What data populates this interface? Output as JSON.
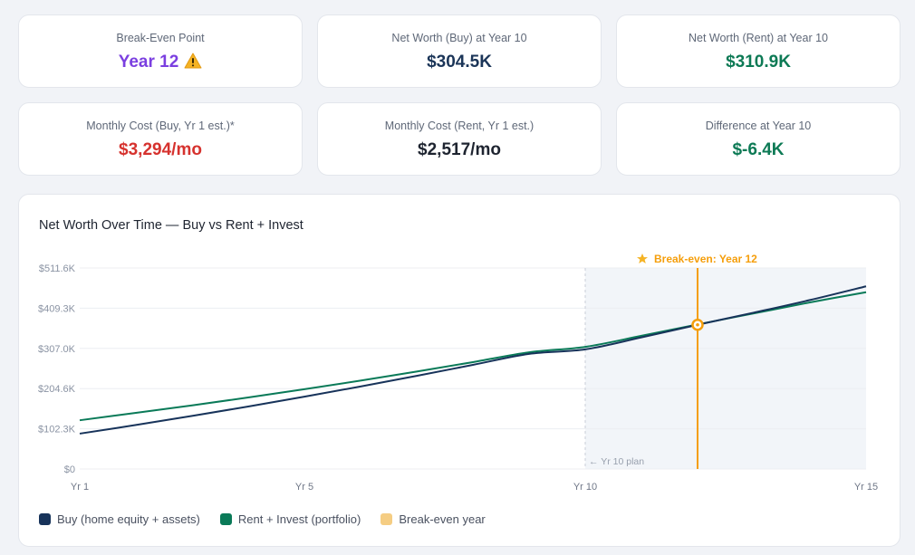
{
  "stats": [
    {
      "label": "Break-Even Point",
      "value": "Year 12",
      "color": "#7b3fe0",
      "icon": "warning-icon"
    },
    {
      "label": "Net Worth (Buy) at Year 10",
      "value": "$304.5K",
      "color": "#1b3558"
    },
    {
      "label": "Net Worth (Rent) at Year 10",
      "value": "$310.9K",
      "color": "#0d7a55"
    },
    {
      "label": "Monthly Cost (Buy, Yr 1 est.)*",
      "value": "$3,294/mo",
      "color": "#d6322e"
    },
    {
      "label": "Monthly Cost (Rent, Yr 1 est.)",
      "value": "$2,517/mo",
      "color": "#1e2430"
    },
    {
      "label": "Difference at Year 10",
      "value": "$-6.4K",
      "color": "#0d7a55"
    }
  ],
  "chart": {
    "title": "Net Worth Over Time — Buy vs Rent + Invest",
    "legend": [
      {
        "label": "Buy (home equity + assets)",
        "color": "#17335a"
      },
      {
        "label": "Rent + Invest (portfolio)",
        "color": "#0a7a58"
      },
      {
        "label": "Break-even year",
        "color": "#f5cd83"
      }
    ]
  },
  "chart_data": {
    "type": "line",
    "x": [
      1,
      2,
      3,
      4,
      5,
      6,
      7,
      8,
      9,
      10,
      11,
      12,
      13,
      14,
      15
    ],
    "series": [
      {
        "name": "Buy (home equity + assets)",
        "color": "#17335a",
        "values": [
          90000,
          112000,
          135000,
          159000,
          184000,
          210000,
          237000,
          265000,
          293000,
          304500,
          335000,
          367000,
          398000,
          430000,
          465000
        ]
      },
      {
        "name": "Rent + Invest (portfolio)",
        "color": "#0a7a58",
        "values": [
          124000,
          143000,
          162000,
          182000,
          203000,
          225000,
          248000,
          272000,
          297000,
          310900,
          339000,
          368000,
          396000,
          424000,
          450000
        ]
      }
    ],
    "x_ticks": [
      {
        "x": 1,
        "label": "Yr 1"
      },
      {
        "x": 5,
        "label": "Yr 5"
      },
      {
        "x": 10,
        "label": "Yr 10"
      },
      {
        "x": 15,
        "label": "Yr 15"
      }
    ],
    "y_ticks": [
      {
        "value": 0,
        "label": "$0"
      },
      {
        "value": 102300,
        "label": "$102.3K"
      },
      {
        "value": 204600,
        "label": "$204.6K"
      },
      {
        "value": 307000,
        "label": "$307.0K"
      },
      {
        "value": 409300,
        "label": "$409.3K"
      },
      {
        "value": 511600,
        "label": "$511.6K"
      }
    ],
    "xlim": [
      1,
      15
    ],
    "ylim": [
      0,
      511600
    ],
    "plan_marker": {
      "x": 10,
      "label": "← Yr 10 plan",
      "shade_to": 15,
      "shade_color": "#f2f5f9"
    },
    "break_even": {
      "x": 12,
      "y": 367000,
      "label": "Break-even: Year 12",
      "color": "#f59e0b",
      "icon": "star-icon"
    },
    "grid": true,
    "legend_position": "bottom-left"
  }
}
